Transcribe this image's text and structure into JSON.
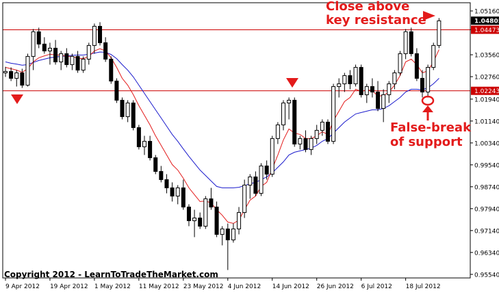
{
  "chart_data": {
    "type": "candlestick",
    "y_ticks": [
      "1.05160",
      "1.04480",
      "1.03560",
      "1.02760",
      "1.01940",
      "1.01140",
      "1.00340",
      "0.99540",
      "0.98740",
      "0.97940",
      "0.97140",
      "0.96340",
      "0.95540"
    ],
    "y_tick_values": [
      1.0516,
      1.0448,
      1.0356,
      1.0276,
      1.0194,
      1.0114,
      1.0034,
      0.9954,
      0.9874,
      0.9794,
      0.9714,
      0.9634,
      0.9554
    ],
    "ylim": [
      0.9541,
      1.0546
    ],
    "x_ticks": [
      "9 Apr 2012",
      "19 Apr 2012",
      "1 May 2012",
      "11 May 2012",
      "23 May 2012",
      "4 Jun 2012",
      "14 Jun 2012",
      "26 Jun 2012",
      "6 Jul 2012",
      "18 Jul 2012"
    ],
    "x_tick_bars": [
      0,
      8,
      16,
      24,
      32,
      40,
      48,
      56,
      64,
      72
    ],
    "current_price": "1.04805",
    "levels": [
      {
        "label": "1.04473",
        "value": 1.04473,
        "color": "#cc0000"
      },
      {
        "label": "1.02243",
        "value": 1.02243,
        "color": "#cc0000"
      }
    ],
    "candles": [
      [
        1.029,
        1.0312,
        1.0275,
        1.0295
      ],
      [
        1.0295,
        1.031,
        1.026,
        1.027
      ],
      [
        1.027,
        1.03,
        1.024,
        1.029
      ],
      [
        1.029,
        1.0305,
        1.0235,
        1.0245
      ],
      [
        1.0245,
        1.036,
        1.024,
        1.035
      ],
      [
        1.035,
        1.045,
        1.03,
        1.044
      ],
      [
        1.044,
        1.0455,
        1.038,
        1.0395
      ],
      [
        1.0395,
        1.042,
        1.036,
        1.037
      ],
      [
        1.037,
        1.04,
        1.032,
        1.038
      ],
      [
        1.038,
        1.041,
        1.032,
        1.033
      ],
      [
        1.033,
        1.037,
        1.03,
        1.036
      ],
      [
        1.036,
        1.038,
        1.031,
        1.032
      ],
      [
        1.032,
        1.036,
        1.03,
        1.035
      ],
      [
        1.035,
        1.037,
        1.029,
        1.03
      ],
      [
        1.03,
        1.035,
        1.029,
        1.034
      ],
      [
        1.034,
        1.04,
        1.032,
        1.039
      ],
      [
        1.039,
        1.047,
        1.036,
        1.046
      ],
      [
        1.046,
        1.0475,
        1.039,
        1.04
      ],
      [
        1.04,
        1.042,
        1.033,
        1.034
      ],
      [
        1.034,
        1.035,
        1.025,
        1.026
      ],
      [
        1.026,
        1.027,
        1.018,
        1.019
      ],
      [
        1.019,
        1.02,
        1.012,
        1.013
      ],
      [
        1.013,
        1.019,
        1.011,
        1.018
      ],
      [
        1.018,
        1.019,
        1.008,
        1.009
      ],
      [
        1.009,
        1.01,
        1.001,
        1.002
      ],
      [
        1.002,
        1.006,
        0.999,
        1.004
      ],
      [
        1.004,
        1.006,
        0.997,
        0.998
      ],
      [
        0.998,
        0.999,
        0.992,
        0.993
      ],
      [
        0.993,
        0.995,
        0.989,
        0.99
      ],
      [
        0.99,
        0.992,
        0.985,
        0.987
      ],
      [
        0.987,
        0.989,
        0.982,
        0.984
      ],
      [
        0.984,
        0.988,
        0.981,
        0.987
      ],
      [
        0.987,
        0.99,
        0.979,
        0.98
      ],
      [
        0.98,
        0.981,
        0.973,
        0.975
      ],
      [
        0.975,
        0.979,
        0.969,
        0.976
      ],
      [
        0.976,
        0.978,
        0.972,
        0.973
      ],
      [
        0.973,
        0.984,
        0.972,
        0.983
      ],
      [
        0.983,
        0.987,
        0.979,
        0.98
      ],
      [
        0.98,
        0.982,
        0.969,
        0.97
      ],
      [
        0.97,
        0.973,
        0.966,
        0.972
      ],
      [
        0.972,
        0.974,
        0.957,
        0.968
      ],
      [
        0.968,
        0.974,
        0.967,
        0.972
      ],
      [
        0.972,
        0.98,
        0.97,
        0.978
      ],
      [
        0.978,
        0.99,
        0.976,
        0.988
      ],
      [
        0.988,
        0.992,
        0.983,
        0.991
      ],
      [
        0.991,
        0.993,
        0.984,
        0.985
      ],
      [
        0.985,
        0.996,
        0.984,
        0.995
      ],
      [
        0.995,
        0.997,
        0.99,
        0.992
      ],
      [
        0.992,
        1.006,
        0.991,
        1.005
      ],
      [
        1.005,
        1.011,
        1.003,
        1.01
      ],
      [
        1.01,
        1.019,
        1.008,
        1.018
      ],
      [
        1.018,
        1.02,
        1.012,
        1.019
      ],
      [
        1.019,
        1.02,
        1.002,
        1.003
      ],
      [
        1.003,
        1.006,
        1.001,
        1.005
      ],
      [
        1.005,
        1.008,
        1.0,
        1.001
      ],
      [
        1.001,
        1.006,
        0.999,
        1.005
      ],
      [
        1.005,
        1.01,
        1.003,
        1.008
      ],
      [
        1.008,
        1.012,
        1.006,
        1.011
      ],
      [
        1.011,
        1.012,
        1.003,
        1.004
      ],
      [
        1.004,
        1.025,
        1.003,
        1.024
      ],
      [
        1.024,
        1.027,
        1.02,
        1.025
      ],
      [
        1.025,
        1.029,
        1.022,
        1.028
      ],
      [
        1.028,
        1.03,
        1.023,
        1.025
      ],
      [
        1.025,
        1.032,
        1.024,
        1.031
      ],
      [
        1.031,
        1.032,
        1.02,
        1.021
      ],
      [
        1.021,
        1.025,
        1.018,
        1.024
      ],
      [
        1.024,
        1.027,
        1.02,
        1.022
      ],
      [
        1.022,
        1.026,
        1.015,
        1.016
      ],
      [
        1.016,
        1.023,
        1.011,
        1.021
      ],
      [
        1.021,
        1.026,
        1.018,
        1.025
      ],
      [
        1.025,
        1.03,
        1.023,
        1.029
      ],
      [
        1.029,
        1.037,
        1.028,
        1.036
      ],
      [
        1.036,
        1.045,
        1.034,
        1.044
      ],
      [
        1.044,
        1.0455,
        1.035,
        1.036
      ],
      [
        1.036,
        1.038,
        1.026,
        1.027
      ],
      [
        1.027,
        1.03,
        1.02,
        1.022
      ],
      [
        1.022,
        1.032,
        1.02,
        1.031
      ],
      [
        1.031,
        1.04,
        1.03,
        1.039
      ],
      [
        1.039,
        1.049,
        1.038,
        1.048
      ]
    ],
    "ma_fast": [
      1.031,
      1.0305,
      1.03,
      1.0292,
      1.0305,
      1.033,
      1.0345,
      1.0352,
      1.0358,
      1.0355,
      1.0355,
      1.035,
      1.035,
      1.0343,
      1.0342,
      1.035,
      1.037,
      1.0378,
      1.037,
      1.0345,
      1.031,
      1.027,
      1.0245,
      1.021,
      1.017,
      1.0135,
      1.01,
      1.006,
      1.0025,
      0.999,
      0.9955,
      0.9935,
      0.9905,
      0.987,
      0.9845,
      0.982,
      0.9822,
      0.9815,
      0.979,
      0.977,
      0.9745,
      0.974,
      0.9752,
      0.979,
      0.9825,
      0.984,
      0.9875,
      0.989,
      0.994,
      0.999,
      1.0045,
      1.0085,
      1.007,
      1.0065,
      1.005,
      1.005,
      1.006,
      1.0075,
      1.0065,
      1.0115,
      1.015,
      1.0185,
      1.02,
      1.023,
      1.0222,
      1.0228,
      1.0225,
      1.0205,
      1.0207,
      1.022,
      1.0245,
      1.028,
      1.033,
      1.034,
      1.032,
      1.029,
      1.0297,
      1.033,
      1.0375
    ],
    "ma_slow": [
      1.033,
      1.0325,
      1.0322,
      1.0318,
      1.032,
      1.0328,
      1.0335,
      1.034,
      1.0345,
      1.0348,
      1.035,
      1.0352,
      1.0354,
      1.0355,
      1.0355,
      1.0358,
      1.0362,
      1.0366,
      1.0365,
      1.0357,
      1.0342,
      1.032,
      1.03,
      1.0275,
      1.0245,
      1.0215,
      1.0185,
      1.0155,
      1.0125,
      1.0095,
      1.0065,
      1.004,
      1.0012,
      0.9985,
      0.996,
      0.9935,
      0.9915,
      0.9895,
      0.9875,
      0.987,
      0.987,
      0.987,
      0.9872,
      0.9878,
      0.9885,
      0.989,
      0.99,
      0.991,
      0.9925,
      0.9945,
      0.9965,
      0.999,
      1.0,
      1.0005,
      1.001,
      1.0015,
      1.0025,
      1.004,
      1.005,
      1.007,
      1.009,
      1.011,
      1.0125,
      1.014,
      1.0145,
      1.015,
      1.0155,
      1.0155,
      1.016,
      1.017,
      1.0185,
      1.02,
      1.022,
      1.023,
      1.023,
      1.0228,
      1.0235,
      1.025,
      1.027
    ]
  },
  "annotations": {
    "resistance_line1": "Close above",
    "resistance_line2": "key resistance",
    "support_line1": "False-break",
    "support_line2": "of support"
  },
  "copyright": "Copyright 2012 - LearnToTradeTheMarket.com",
  "colors": {
    "ma_fast": "#e31b1b",
    "ma_slow": "#1a1acc",
    "annotation": "#e31b1b",
    "level": "#cc0000",
    "bull": "#ffffff",
    "bear": "#000000"
  }
}
